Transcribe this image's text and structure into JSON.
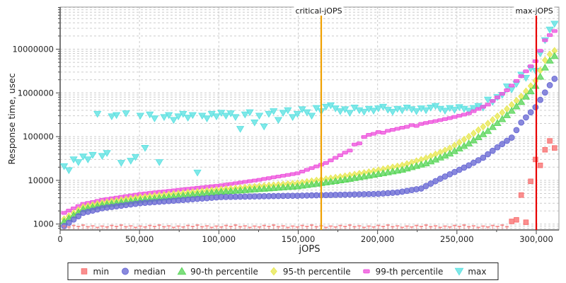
{
  "chart_data": {
    "type": "scatter",
    "title": "",
    "xlabel": "jOPS",
    "ylabel": "Response time, usec",
    "x_axis": {
      "min": 0,
      "max": 314000,
      "major_ticks": [
        0,
        50000,
        100000,
        150000,
        200000,
        250000,
        300000
      ],
      "tick_labels": [
        "0",
        "50,000",
        "100,000",
        "150,000",
        "200,000",
        "250,000",
        "300,000"
      ],
      "minor_step": 25000
    },
    "y_axis": {
      "scale": "log",
      "min": 730,
      "max": 93000000,
      "major_ticks": [
        1000,
        10000,
        100000,
        1000000,
        10000000
      ],
      "tick_labels": [
        "1000",
        "10000",
        "100000",
        "1000000",
        "10000000"
      ]
    },
    "grid": {
      "on": true,
      "color": "#cccccc"
    },
    "annotations": [
      {
        "label": "critical-jOPS",
        "x": 164500,
        "color": "#f0a000"
      },
      {
        "label": "max-jOPS",
        "x": 300000,
        "color": "#e80000"
      }
    ],
    "legend_position": "bottom-center",
    "jops": [
      2500,
      5500,
      8500,
      11500,
      14500,
      17500,
      20500,
      23500,
      26500,
      29500,
      32500,
      35500,
      38500,
      41500,
      44500,
      47500,
      50500,
      53500,
      56500,
      59500,
      62500,
      65500,
      68500,
      71500,
      74500,
      77500,
      80500,
      83500,
      86500,
      89500,
      92500,
      95500,
      98500,
      101500,
      104500,
      107500,
      110500,
      113500,
      116500,
      119500,
      122500,
      125500,
      128500,
      131500,
      134500,
      137500,
      140500,
      143500,
      146500,
      149500,
      152500,
      155500,
      158500,
      161500,
      164500,
      167500,
      170500,
      173500,
      176500,
      179500,
      182500,
      185500,
      188500,
      191500,
      194500,
      197500,
      200500,
      203500,
      206500,
      209500,
      212500,
      215500,
      218500,
      221500,
      224500,
      227500,
      230500,
      233500,
      236500,
      239500,
      242500,
      245500,
      248500,
      251500,
      254500,
      257500,
      260500,
      263500,
      266500,
      269500,
      272500,
      275500,
      278500,
      281500,
      284500,
      287500,
      290500,
      293500,
      296500,
      299500,
      302500,
      305500,
      308500,
      311500
    ],
    "series": [
      {
        "name": "min",
        "marker": "square-pin",
        "color": "#f87070",
        "values": [
          900,
          860,
          930,
          880,
          950,
          870,
          910,
          840,
          900,
          860,
          930,
          880,
          950,
          870,
          910,
          840,
          900,
          860,
          930,
          880,
          950,
          870,
          910,
          840,
          900,
          860,
          930,
          880,
          950,
          870,
          910,
          840,
          900,
          860,
          930,
          880,
          950,
          870,
          910,
          840,
          900,
          860,
          930,
          880,
          950,
          870,
          910,
          840,
          900,
          860,
          930,
          880,
          950,
          870,
          910,
          840,
          900,
          860,
          930,
          880,
          950,
          870,
          910,
          840,
          900,
          860,
          930,
          880,
          950,
          870,
          910,
          840,
          900,
          860,
          930,
          880,
          950,
          870,
          910,
          840,
          900,
          860,
          930,
          880,
          950,
          870,
          910,
          840,
          900,
          860,
          930,
          880,
          950,
          870,
          1150,
          1250,
          4600,
          1100,
          9500,
          30000,
          22000,
          50000,
          80000,
          55000
        ]
      },
      {
        "name": "median",
        "marker": "circle",
        "color": "#6868d4",
        "values": [
          900,
          1070,
          1270,
          1510,
          1800,
          1910,
          2030,
          2160,
          2300,
          2380,
          2460,
          2540,
          2630,
          2720,
          2810,
          2900,
          3000,
          3060,
          3120,
          3180,
          3240,
          3300,
          3360,
          3420,
          3490,
          3560,
          3630,
          3700,
          3770,
          3840,
          3910,
          3990,
          4070,
          4150,
          4170,
          4190,
          4210,
          4230,
          4250,
          4270,
          4290,
          4310,
          4330,
          4350,
          4370,
          4390,
          4410,
          4430,
          4440,
          4450,
          4480,
          4500,
          4530,
          4550,
          4580,
          4600,
          4630,
          4660,
          4680,
          4710,
          4740,
          4770,
          4790,
          4820,
          4850,
          4870,
          4900,
          5000,
          5100,
          5200,
          5300,
          5520,
          5750,
          6000,
          6250,
          6500,
          7400,
          8420,
          9580,
          10900,
          12250,
          13770,
          15480,
          17400,
          19560,
          22000,
          25200,
          28800,
          33000,
          39600,
          47500,
          57000,
          67600,
          80100,
          95000,
          141000,
          210000,
          275000,
          360000,
          470000,
          692000,
          1020000,
          1500000,
          2100000
        ]
      },
      {
        "name": "90-th percentile",
        "marker": "triangle-up",
        "color": "#5ad65a",
        "values": [
          1150,
          1350,
          1590,
          1870,
          2200,
          2330,
          2460,
          2600,
          2750,
          2850,
          2950,
          3050,
          3150,
          3260,
          3370,
          3480,
          3600,
          3690,
          3780,
          3880,
          3980,
          4080,
          4180,
          4280,
          4390,
          4500,
          4610,
          4730,
          4850,
          4970,
          5090,
          5220,
          5350,
          5500,
          5600,
          5700,
          5800,
          5900,
          6010,
          6120,
          6230,
          6340,
          6450,
          6570,
          6690,
          6810,
          6930,
          7050,
          7170,
          7300,
          7560,
          7830,
          8110,
          8400,
          8700,
          9010,
          9330,
          9660,
          10000,
          10420,
          10860,
          11320,
          11800,
          12280,
          12800,
          13390,
          14000,
          14640,
          15310,
          16010,
          16740,
          17500,
          18730,
          20040,
          21440,
          22940,
          24500,
          27100,
          30000,
          33300,
          36900,
          41000,
          46900,
          53600,
          61300,
          70000,
          82400,
          97100,
          114000,
          135000,
          166000,
          205000,
          252000,
          310000,
          391000,
          492000,
          620000,
          823000,
          1090000,
          1450000,
          2350000,
          3800000,
          5500000,
          7000000
        ]
      },
      {
        "name": "95-th percentile",
        "marker": "diamond",
        "color": "#e8e852",
        "values": [
          1300,
          1520,
          1790,
          2090,
          2450,
          2590,
          2730,
          2890,
          3050,
          3170,
          3290,
          3410,
          3540,
          3670,
          3810,
          3950,
          4100,
          4200,
          4300,
          4410,
          4520,
          4630,
          4740,
          4860,
          4980,
          5100,
          5230,
          5360,
          5490,
          5630,
          5770,
          5910,
          6050,
          6200,
          6330,
          6460,
          6590,
          6730,
          6870,
          7010,
          7160,
          7310,
          7460,
          7610,
          7770,
          7930,
          8090,
          8260,
          8430,
          8600,
          8930,
          9270,
          9620,
          9980,
          10360,
          10750,
          11160,
          11580,
          12000,
          12520,
          13070,
          13640,
          14230,
          14850,
          15500,
          16300,
          17140,
          18020,
          18940,
          19920,
          20940,
          22000,
          23700,
          25550,
          27540,
          29680,
          32000,
          35530,
          39450,
          43810,
          48640,
          54000,
          63000,
          73500,
          85700,
          100000,
          118900,
          141400,
          168200,
          200000,
          242000,
          293000,
          355000,
          430000,
          535000,
          666000,
          830000,
          1090000,
          1440000,
          1900000,
          3260000,
          5600000,
          7600000,
          9200000
        ]
      },
      {
        "name": "99-th percentile",
        "marker": "bar",
        "color": "#ee55dd",
        "values": [
          1800,
          2030,
          2290,
          2580,
          2900,
          3050,
          3200,
          3390,
          3600,
          3740,
          3890,
          4040,
          4200,
          4370,
          4540,
          4710,
          4900,
          5030,
          5170,
          5310,
          5450,
          5600,
          5750,
          5910,
          6070,
          6230,
          6400,
          6570,
          6750,
          6930,
          7120,
          7310,
          7510,
          7700,
          7990,
          8280,
          8590,
          8910,
          9240,
          9580,
          9930,
          10300,
          10750,
          11220,
          11710,
          12220,
          12750,
          13310,
          13890,
          14500,
          15880,
          17390,
          19040,
          20840,
          22830,
          25000,
          28600,
          32800,
          37500,
          43000,
          48000,
          66000,
          70000,
          98000,
          110000,
          116000,
          127000,
          123000,
          136000,
          143000,
          151000,
          160000,
          168000,
          183000,
          176000,
          195000,
          205000,
          216000,
          227000,
          239000,
          252000,
          265000,
          282000,
          300000,
          319000,
          340000,
          382000,
          429000,
          481000,
          540000,
          652000,
          788000,
          952000,
          1150000,
          1470000,
          1880000,
          2400000,
          3120000,
          4060000,
          5300000,
          9200000,
          16000000,
          21000000,
          26000000
        ]
      },
      {
        "name": "max",
        "marker": "triangle-down",
        "color": "#5ce2e2",
        "values": [
          21000,
          17000,
          30000,
          26000,
          35000,
          30000,
          38000,
          330000,
          36000,
          42000,
          290000,
          310000,
          25000,
          340000,
          28000,
          34000,
          300000,
          55000,
          320000,
          260000,
          26000,
          280000,
          310000,
          240000,
          290000,
          330000,
          270000,
          310000,
          15000,
          300000,
          260000,
          330000,
          290000,
          350000,
          300000,
          340000,
          280000,
          150000,
          320000,
          360000,
          210000,
          300000,
          170000,
          330000,
          380000,
          240000,
          350000,
          400000,
          280000,
          330000,
          420000,
          360000,
          300000,
          450000,
          380000,
          480000,
          520000,
          440000,
          380000,
          420000,
          350000,
          460000,
          400000,
          370000,
          430000,
          390000,
          440000,
          480000,
          410000,
          370000,
          430000,
          400000,
          460000,
          420000,
          380000,
          440000,
          400000,
          460000,
          500000,
          430000,
          390000,
          450000,
          410000,
          470000,
          430000,
          390000,
          450000,
          500000,
          460000,
          700000,
          620000,
          800000,
          900000,
          1400000,
          1200000,
          1600000,
          2600000,
          2200000,
          3600000,
          3200000,
          8000000,
          16000000,
          28000000,
          38000000
        ]
      }
    ]
  }
}
